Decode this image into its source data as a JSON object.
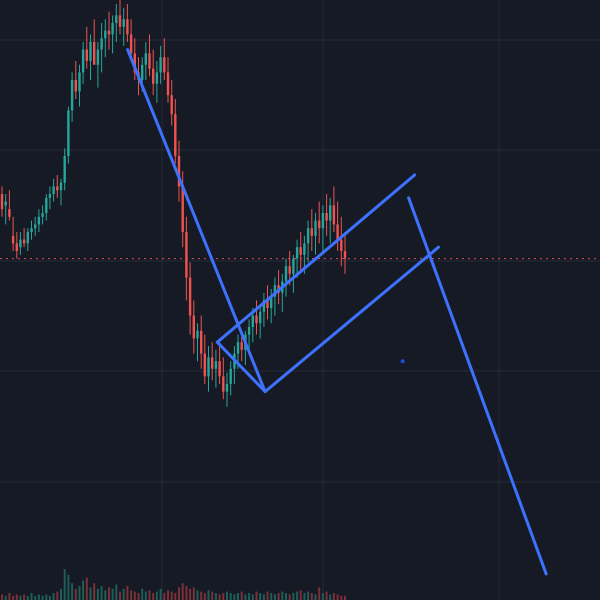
{
  "chart_data": {
    "type": "candlestick",
    "title": "",
    "xlabel": "",
    "ylabel": "",
    "grid": true,
    "legend": "none",
    "price_range": [
      0,
      100
    ],
    "volume_range": [
      0,
      100
    ],
    "colors": {
      "background": "#161a25",
      "grid": "#262b38",
      "up": "#26a69a",
      "down": "#ef5350",
      "volume_up": "#1f5e57",
      "volume_down": "#7a3036",
      "drawing": "#3d72ff",
      "price_line": "#e0505a",
      "marker": "#1f4bd9"
    },
    "candles": [
      [
        70,
        72,
        64,
        66
      ],
      [
        67,
        70,
        62,
        68
      ],
      [
        66,
        71,
        63,
        64
      ],
      [
        59,
        64,
        55,
        57
      ],
      [
        57,
        60,
        53,
        55
      ],
      [
        56,
        60,
        54,
        58
      ],
      [
        58,
        61,
        56,
        57
      ],
      [
        57,
        61,
        55,
        60
      ],
      [
        60,
        63,
        58,
        61
      ],
      [
        61,
        64,
        59,
        62
      ],
      [
        62,
        66,
        60,
        64
      ],
      [
        64,
        67,
        62,
        65
      ],
      [
        65,
        70,
        63,
        69
      ],
      [
        69,
        72,
        66,
        70
      ],
      [
        70,
        74,
        68,
        72
      ],
      [
        72,
        75,
        69,
        71
      ],
      [
        71,
        74,
        67,
        73
      ],
      [
        73,
        82,
        71,
        80
      ],
      [
        80,
        93,
        78,
        92
      ],
      [
        92,
        102,
        89,
        100
      ],
      [
        100,
        105,
        95,
        97
      ],
      [
        97,
        104,
        93,
        102
      ],
      [
        102,
        110,
        99,
        108
      ],
      [
        108,
        114,
        103,
        105
      ],
      [
        105,
        112,
        100,
        110
      ],
      [
        110,
        116,
        105,
        104
      ],
      [
        104,
        110,
        98,
        108
      ],
      [
        108,
        115,
        102,
        111
      ],
      [
        111,
        116,
        106,
        113
      ],
      [
        113,
        118,
        108,
        112
      ],
      [
        112,
        117,
        107,
        115
      ],
      [
        115,
        120,
        110,
        117
      ],
      [
        117,
        122,
        112,
        114
      ],
      [
        114,
        119,
        109,
        116
      ],
      [
        116,
        120,
        110,
        112
      ],
      [
        112,
        116,
        105,
        107
      ],
      [
        107,
        111,
        100,
        102
      ],
      [
        102,
        106,
        96,
        100
      ],
      [
        100,
        106,
        97,
        104
      ],
      [
        104,
        110,
        100,
        107
      ],
      [
        107,
        112,
        101,
        103
      ],
      [
        103,
        108,
        96,
        99
      ],
      [
        99,
        105,
        94,
        102
      ],
      [
        102,
        109,
        99,
        106
      ],
      [
        106,
        111,
        100,
        102
      ],
      [
        102,
        106,
        94,
        96
      ],
      [
        96,
        100,
        88,
        91
      ],
      [
        91,
        95,
        78,
        80
      ],
      [
        80,
        84,
        68,
        72
      ],
      [
        72,
        76,
        56,
        60
      ],
      [
        60,
        64,
        42,
        48
      ],
      [
        48,
        52,
        33,
        38
      ],
      [
        38,
        42,
        28,
        32
      ],
      [
        32,
        36,
        26,
        34
      ],
      [
        34,
        38,
        24,
        28
      ],
      [
        28,
        33,
        20,
        22
      ],
      [
        22,
        30,
        18,
        27
      ],
      [
        27,
        31,
        21,
        24
      ],
      [
        24,
        29,
        19,
        26
      ],
      [
        26,
        31,
        20,
        22
      ],
      [
        22,
        27,
        16,
        18
      ],
      [
        18,
        23,
        14,
        20
      ],
      [
        20,
        26,
        17,
        24
      ],
      [
        24,
        30,
        20,
        28
      ],
      [
        28,
        33,
        24,
        31
      ],
      [
        31,
        34,
        26,
        29
      ],
      [
        29,
        34,
        25,
        33
      ],
      [
        33,
        37,
        28,
        35
      ],
      [
        35,
        40,
        31,
        38
      ],
      [
        38,
        42,
        33,
        36
      ],
      [
        36,
        41,
        32,
        39
      ],
      [
        39,
        44,
        35,
        42
      ],
      [
        42,
        46,
        37,
        40
      ],
      [
        40,
        45,
        36,
        43
      ],
      [
        43,
        48,
        38,
        46
      ],
      [
        46,
        50,
        41,
        44
      ],
      [
        44,
        49,
        39,
        47
      ],
      [
        47,
        53,
        43,
        51
      ],
      [
        51,
        55,
        46,
        49
      ],
      [
        49,
        54,
        44,
        53
      ],
      [
        53,
        58,
        48,
        56
      ],
      [
        56,
        60,
        50,
        54
      ],
      [
        54,
        59,
        49,
        57
      ],
      [
        57,
        63,
        52,
        61
      ],
      [
        61,
        66,
        55,
        59
      ],
      [
        59,
        65,
        54,
        63
      ],
      [
        63,
        68,
        57,
        61
      ],
      [
        61,
        67,
        55,
        65
      ],
      [
        65,
        70,
        59,
        63
      ],
      [
        63,
        69,
        57,
        67
      ],
      [
        67,
        72,
        60,
        62
      ],
      [
        62,
        68,
        55,
        58
      ],
      [
        58,
        64,
        51,
        55
      ],
      [
        55,
        60,
        49,
        53
      ]
    ],
    "volume": [
      4,
      3,
      5,
      3,
      4,
      3,
      4,
      3,
      5,
      3,
      4,
      3,
      4,
      3,
      5,
      6,
      8,
      22,
      18,
      12,
      8,
      10,
      14,
      16,
      9,
      12,
      8,
      10,
      7,
      9,
      8,
      11,
      6,
      8,
      10,
      7,
      6,
      5,
      8,
      6,
      7,
      5,
      6,
      8,
      5,
      7,
      6,
      5,
      9,
      12,
      10,
      8,
      9,
      7,
      6,
      5,
      7,
      6,
      5,
      4,
      5,
      6,
      5,
      4,
      5,
      6,
      4,
      5,
      4,
      6,
      5,
      4,
      6,
      5,
      4,
      5,
      6,
      5,
      4,
      5,
      6,
      7,
      5,
      6,
      5,
      4,
      9,
      5,
      6,
      4,
      5,
      4,
      3,
      3
    ],
    "drawings": {
      "price_level": 53,
      "trend_line_down": {
        "from": [
          21,
          108
        ],
        "to": [
          44,
          18
        ]
      },
      "channel_upper": {
        "from": [
          36,
          31
        ],
        "to": [
          69,
          75
        ]
      },
      "channel_lower": {
        "from": [
          44,
          18
        ],
        "to": [
          73,
          56
        ]
      },
      "channel_edge": {
        "from": [
          44,
          18
        ],
        "to": [
          36,
          31
        ]
      },
      "projection_line": {
        "from": [
          68,
          69
        ],
        "to": [
          91,
          -30
        ]
      },
      "marker_point": [
        67,
        26
      ]
    }
  }
}
